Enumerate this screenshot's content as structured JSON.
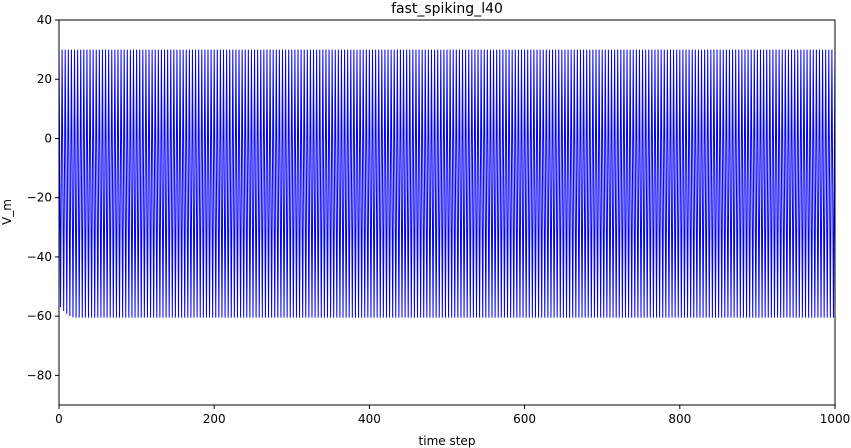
{
  "chart_data": {
    "type": "line",
    "title": "fast_spiking_l40",
    "xlabel": "time step",
    "ylabel": "V_m",
    "xlim": [
      0,
      1000
    ],
    "ylim": [
      -90,
      40
    ],
    "x_ticks": [
      0,
      200,
      400,
      600,
      800,
      1000
    ],
    "y_ticks": [
      40,
      20,
      0,
      -20,
      -40,
      -60,
      -80
    ],
    "x_tick_labels": [
      "0",
      "200",
      "400",
      "600",
      "800",
      "1000"
    ],
    "y_tick_labels": [
      "40",
      "20",
      "0",
      "−20",
      "−40",
      "−60",
      "−80"
    ],
    "grid": false,
    "series": [
      {
        "color": "#0000ff",
        "trace": {
          "spike_peak": 30,
          "reset_voltage": -60.5,
          "initial_voltage": -57,
          "initial_settle_steps": 20,
          "spike_period_steps": 4,
          "num_steps": 1000
        }
      }
    ]
  }
}
